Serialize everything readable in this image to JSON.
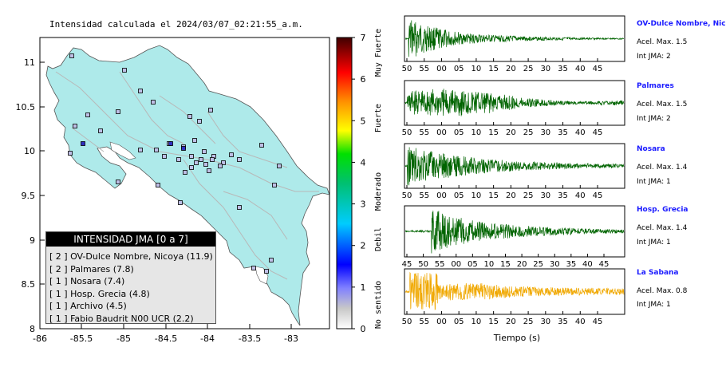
{
  "map": {
    "title": "Intensidad calculada el 2024/03/07_02:21:55_a.m.",
    "lat_ticks": [
      "11",
      "10.5",
      "10",
      "9.5",
      "9",
      "8.5",
      "8"
    ],
    "lon_ticks": [
      "-86",
      "-85.5",
      "-85",
      "-84.5",
      "-84",
      "-83.5",
      "-83"
    ]
  },
  "colorbar": {
    "ticks": [
      "7",
      "6",
      "5",
      "4",
      "3",
      "2",
      "1",
      "0"
    ],
    "labels": [
      "Muy Fuerte",
      "Fuerte",
      "Moderado",
      "Debil",
      "No sentido"
    ]
  },
  "legend": {
    "header": "INTENSIDAD JMA [0 a 7]",
    "rows": [
      "[ 2 ]  OV-Dulce Nombre, Nicoya (11.9)",
      "[ 2 ]  Palmares (7.8)",
      "[ 1 ]  Nosara (7.4)",
      "[ 1 ]  Hosp. Grecia (4.8)",
      "[ 1 ]  Archivo (4.5)",
      "[ 1 ]  Fabio Baudrit N00 UCR (2.2)"
    ]
  },
  "waveforms": {
    "xlabel": "Tiempo (s)",
    "panels": [
      {
        "name": "OV-Dulce Nombre, Nicoya",
        "accel": "Acel. Max. 1.5",
        "jma": "Int JMA: 2",
        "color": "#006400",
        "ticks": [
          "50",
          "55",
          "00",
          "05",
          "10",
          "15",
          "20",
          "25",
          "30",
          "35",
          "40",
          "45"
        ]
      },
      {
        "name": "Palmares",
        "accel": "Acel. Max. 1.5",
        "jma": "Int JMA: 2",
        "color": "#006400",
        "ticks": [
          "50",
          "55",
          "00",
          "05",
          "10",
          "15",
          "20",
          "25",
          "30",
          "35",
          "40",
          "45"
        ]
      },
      {
        "name": "Nosara",
        "accel": "Acel. Max. 1.4",
        "jma": "Int JMA: 1",
        "color": "#006400",
        "ticks": [
          "50",
          "55",
          "00",
          "05",
          "10",
          "15",
          "20",
          "25",
          "30",
          "35",
          "40",
          "45"
        ]
      },
      {
        "name": "Hosp. Grecia",
        "accel": "Acel. Max. 1.4",
        "jma": "Int JMA: 1",
        "color": "#006400",
        "ticks": [
          "45",
          "50",
          "55",
          "00",
          "05",
          "10",
          "15",
          "20",
          "25",
          "30",
          "35",
          "40",
          "45"
        ]
      },
      {
        "name": "La Sabana",
        "accel": "Acel. Max. 0.8",
        "jma": "Int JMA: 1",
        "color": "#f0a800",
        "ticks": [
          "50",
          "55",
          "00",
          "05",
          "10",
          "15",
          "20",
          "25",
          "30",
          "35",
          "40",
          "45"
        ]
      }
    ]
  }
}
